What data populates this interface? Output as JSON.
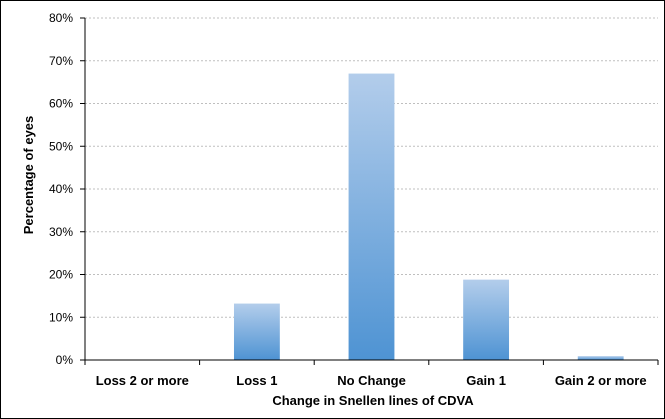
{
  "chart_data": {
    "type": "bar",
    "title": "",
    "xlabel": "Change in Snellen lines of CDVA",
    "ylabel": "Percentage of eyes",
    "categories": [
      "Loss 2 or more",
      "Loss 1",
      "No Change",
      "Gain 1",
      "Gain 2 or more"
    ],
    "values": [
      0,
      13.2,
      67,
      18.8,
      0.9
    ],
    "y_ticks": [
      "0%",
      "10%",
      "20%",
      "30%",
      "40%",
      "50%",
      "60%",
      "70%",
      "80%"
    ],
    "ylim": [
      0,
      80
    ],
    "grid": true,
    "legend": "none",
    "colors": {
      "bar_top": "#b3cdeb",
      "bar_bottom": "#4e93d3",
      "grid": "#bfbfbf",
      "axis": "#000000"
    }
  }
}
